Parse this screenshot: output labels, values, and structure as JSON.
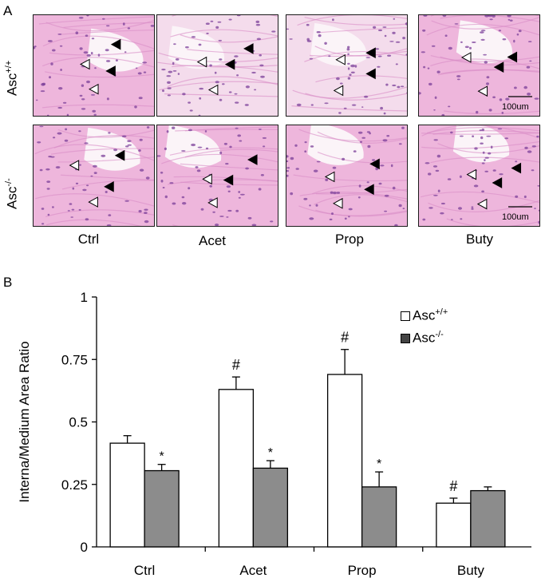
{
  "panel_a": {
    "letter": "A",
    "rows": [
      {
        "label_base": "Asc",
        "label_sup": "+/+"
      },
      {
        "label_base": "Asc",
        "label_sup": "-/-"
      }
    ],
    "columns": [
      "Ctrl",
      "Acet",
      "Prop",
      "Buty"
    ],
    "scale_bar_label": "100um"
  },
  "panel_b": {
    "letter": "B"
  },
  "chart_data": {
    "type": "bar",
    "title": "",
    "xlabel": "",
    "ylabel": "Interna/Medium  Area Ratio",
    "ylim": [
      0,
      1
    ],
    "yticks": [
      "0",
      "0.25",
      "0.5",
      "0.75",
      "1"
    ],
    "ytick_values": [
      0,
      0.25,
      0.5,
      0.75,
      1
    ],
    "categories": [
      "Ctrl",
      "Acet",
      "Prop",
      "Buty"
    ],
    "series": [
      {
        "name": "Asc+/+",
        "name_base": "Asc",
        "name_sup": "+/+",
        "color": "#ffffff",
        "values": [
          0.415,
          0.63,
          0.69,
          0.175
        ],
        "errors": [
          0.03,
          0.05,
          0.1,
          0.02
        ],
        "markers": [
          "",
          "#",
          "#",
          "#"
        ]
      },
      {
        "name": "Asc-/-",
        "name_base": "Asc",
        "name_sup": "-/-",
        "color": "#8c8c8c",
        "values": [
          0.305,
          0.315,
          0.24,
          0.225
        ],
        "errors": [
          0.025,
          0.03,
          0.06,
          0.015
        ],
        "markers": [
          "*",
          "*",
          "*",
          ""
        ]
      }
    ],
    "legend_position": "top-right",
    "grid": false
  }
}
